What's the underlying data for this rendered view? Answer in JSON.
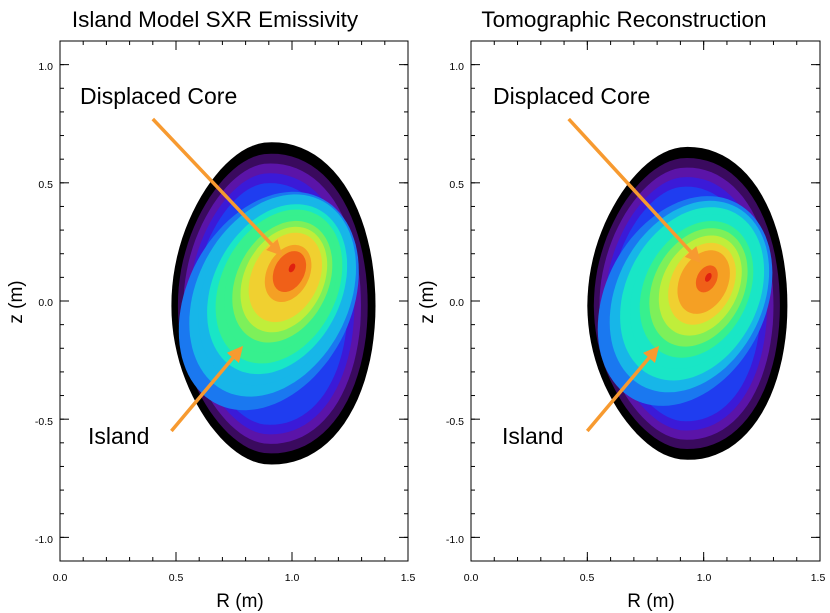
{
  "chart_data": [
    {
      "type": "heatmap",
      "title": "Island Model SXR Emissivity",
      "xlabel": "R (m)",
      "ylabel": "z (m)",
      "xlim": [
        0.0,
        1.5
      ],
      "ylim": [
        -1.1,
        1.1
      ],
      "x_ticks": [
        "0.0",
        "0.5",
        "1.0",
        "1.5"
      ],
      "y_ticks": [
        "-1.0",
        "-0.5",
        "0.0",
        "0.5",
        "1.0"
      ],
      "colormap": [
        "#000000",
        "#3a0a5e",
        "#5b14a8",
        "#3b1ad8",
        "#1f3df0",
        "#1a78f0",
        "#17b6e8",
        "#19e6c6",
        "#37f08e",
        "#7df05a",
        "#c0ee3a",
        "#f0d030",
        "#f5a024",
        "#f06018",
        "#e02010"
      ],
      "boundary": {
        "center": [
          0.88,
          -0.02
        ],
        "r_in": 0.4,
        "r_out": 0.48,
        "z_up": 0.69,
        "z_down": 0.67
      },
      "core": {
        "R": 1.0,
        "z": 0.14,
        "levels": 14,
        "rx": 0.34,
        "rz": 0.47
      },
      "island": {
        "R": 0.74,
        "z": -0.22,
        "rx": 0.19,
        "rz": 0.23,
        "level": 5
      },
      "annotations": [
        {
          "text": "Displaced Core",
          "R": 0.1,
          "z": 0.87,
          "arrow_from": [
            0.4,
            0.77
          ],
          "arrow_to": [
            0.95,
            0.2
          ]
        },
        {
          "text": "Island",
          "R": 0.12,
          "z": -0.6,
          "arrow_from": [
            0.48,
            -0.55
          ],
          "arrow_to": [
            0.78,
            -0.2
          ]
        }
      ]
    },
    {
      "type": "heatmap",
      "title": "Tomographic Reconstruction",
      "xlabel": "R (m)",
      "ylabel": "z (m)",
      "xlim": [
        0.0,
        1.5
      ],
      "ylim": [
        -1.1,
        1.1
      ],
      "x_ticks": [
        "0.0",
        "0.5",
        "1.0",
        "1.5"
      ],
      "y_ticks": [
        "-1.0",
        "-0.5",
        "0.0",
        "0.5",
        "1.0"
      ],
      "colormap": [
        "#000000",
        "#3a0a5e",
        "#5b14a8",
        "#3b1ad8",
        "#1f3df0",
        "#1a78f0",
        "#17b6e8",
        "#19e6c6",
        "#37f08e",
        "#7df05a",
        "#c0ee3a",
        "#f0d030",
        "#f5a024",
        "#f06018",
        "#e02010"
      ],
      "boundary": {
        "center": [
          0.9,
          -0.02
        ],
        "r_in": 0.4,
        "r_out": 0.46,
        "z_up": 0.67,
        "z_down": 0.65
      },
      "core": {
        "R": 1.02,
        "z": 0.1,
        "levels": 12,
        "rx": 0.33,
        "rz": 0.45
      },
      "island": {
        "R": 0.76,
        "z": -0.22,
        "rx": 0.18,
        "rz": 0.22,
        "level": 5
      },
      "annotations": [
        {
          "text": "Displaced Core",
          "R": 0.12,
          "z": 0.87,
          "arrow_from": [
            0.42,
            0.77
          ],
          "arrow_to": [
            0.98,
            0.17
          ]
        },
        {
          "text": "Island",
          "R": 0.14,
          "z": -0.6,
          "arrow_from": [
            0.5,
            -0.55
          ],
          "arrow_to": [
            0.8,
            -0.2
          ]
        }
      ]
    }
  ]
}
